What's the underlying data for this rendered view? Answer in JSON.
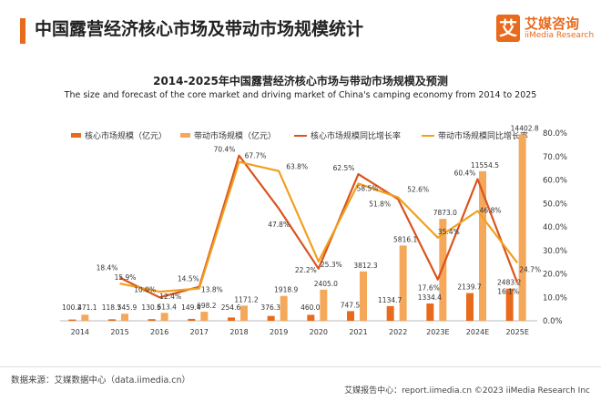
{
  "header": {
    "title": "中国露营经济核心市场及带动市场规模统计",
    "logo_glyph": "艾",
    "logo_cn": "艾媒咨询",
    "logo_en": "iiMedia Research"
  },
  "chart_data": {
    "type": "bar",
    "title": "2014-2025年中国露营经济核心市场与带动市场规模及预测",
    "subtitle": "The size and forecast of the core market and driving market of China's camping economy from 2014 to 2025",
    "categories": [
      "2014",
      "2015",
      "2016",
      "2017",
      "2018",
      "2019",
      "2020",
      "2021",
      "2022",
      "2023E",
      "2024E",
      "2025E"
    ],
    "bar_series": [
      {
        "name": "核心市场规模（亿元）",
        "color": "#e86a1c",
        "values": [
          100.2,
          118.7,
          130.5,
          149.4,
          254.6,
          376.3,
          460.0,
          747.5,
          1134.7,
          1334.4,
          2139.7,
          2483.2
        ],
        "labels": [
          "100.2",
          "118.7",
          "130.5",
          "149.4",
          "254.6",
          "376.3",
          "460.0",
          "747.5",
          "1134.7",
          "1334.4",
          "2139.7",
          "2483.2"
        ]
      },
      {
        "name": "带动市场规模（亿元）",
        "color": "#f5a85a",
        "values": [
          471.1,
          545.9,
          613.4,
          698.2,
          1171.2,
          1918.9,
          2405.0,
          3812.3,
          5816.1,
          7873.0,
          11554.5,
          14402.8
        ],
        "labels": [
          "471.1",
          "545.9",
          "613.4",
          "698.2",
          "1171.2",
          "1918.9",
          "2405.0",
          "3812.3",
          "5816.1",
          "7873.0",
          "11554.5",
          "14402.8"
        ]
      }
    ],
    "line_series": [
      {
        "name": "核心市场规模同比增长率",
        "color": "#d9541e",
        "x": [
          "2015",
          "2016",
          "2017",
          "2018",
          "2019",
          "2020",
          "2021",
          "2022",
          "2023E",
          "2024E",
          "2025E"
        ],
        "values": [
          18.4,
          10.0,
          14.5,
          70.4,
          47.8,
          22.2,
          62.5,
          51.8,
          17.6,
          60.4,
          16.1
        ],
        "labels": [
          "18.4%",
          "10.0%",
          "14.5%",
          "70.4%",
          "47.8%",
          "22.2%",
          "62.5%",
          "51.8%",
          "17.6%",
          "60.4%",
          "16.1%"
        ]
      },
      {
        "name": "带动市场规模同比增长率",
        "color": "#f0a020",
        "x": [
          "2015",
          "2016",
          "2017",
          "2018",
          "2019",
          "2020",
          "2021",
          "2022",
          "2023E",
          "2024E",
          "2025E"
        ],
        "values": [
          15.9,
          12.4,
          13.8,
          67.7,
          63.8,
          25.3,
          58.5,
          52.6,
          35.4,
          46.8,
          24.7
        ],
        "labels": [
          "15.9%",
          "12.4%",
          "13.8%",
          "67.7%",
          "63.8%",
          "25.3%",
          "58.5%",
          "52.6%",
          "35.4%",
          "46.8%",
          "24.7%"
        ]
      }
    ],
    "left_axis": {
      "min": 0,
      "max": 14500
    },
    "right_axis": {
      "min": 0,
      "max": 80,
      "ticks": [
        "0.0%",
        "10.0%",
        "20.0%",
        "30.0%",
        "40.0%",
        "50.0%",
        "60.0%",
        "70.0%",
        "80.0%"
      ]
    },
    "legend_position": "top",
    "grid": false
  },
  "footer": {
    "source": "数据来源：艾媒数据中心（data.iimedia.cn）",
    "right": "艾媒报告中心：report.iimedia.cn  ©2023  iiMedia Research Inc"
  }
}
